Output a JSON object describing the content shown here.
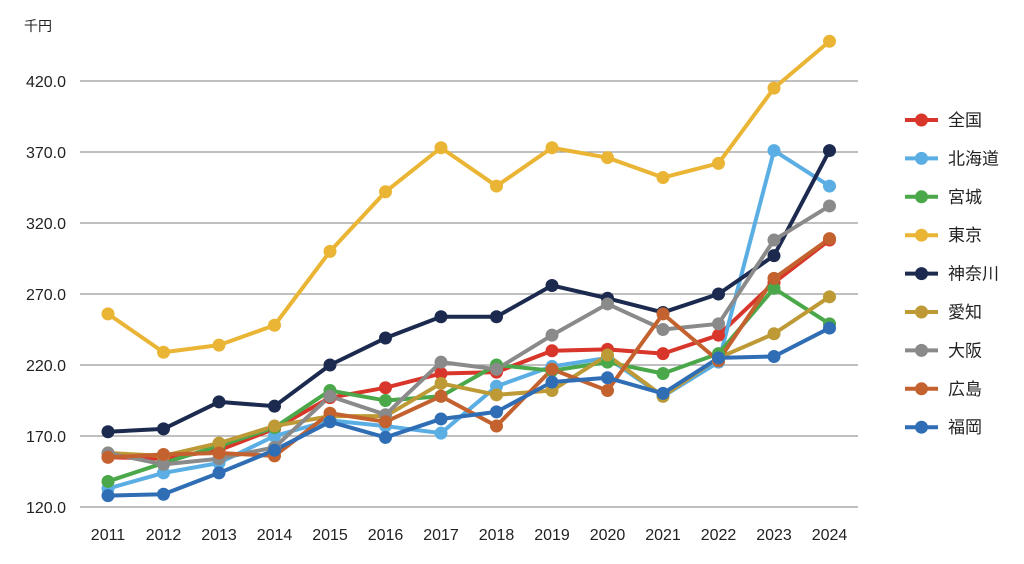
{
  "chart_data": {
    "type": "line",
    "unit_label": "千円",
    "x": [
      "2011",
      "2012",
      "2013",
      "2014",
      "2015",
      "2016",
      "2017",
      "2018",
      "2019",
      "2020",
      "2021",
      "2022",
      "2023",
      "2024"
    ],
    "ylim": [
      120,
      440
    ],
    "yticks": [
      120,
      170,
      220,
      270,
      320,
      370,
      420
    ],
    "ytick_labels": [
      "120.0",
      "170.0",
      "220.0",
      "270.0",
      "320.0",
      "370.0",
      "420.0"
    ],
    "grid": true,
    "legend_position": "right",
    "series": [
      {
        "name": "全国",
        "color": "#d9362b",
        "values": [
          155,
          154,
          160,
          175,
          197,
          204,
          214,
          215,
          230,
          231,
          228,
          241,
          278,
          308
        ]
      },
      {
        "name": "北海道",
        "color": "#5aaee3",
        "values": [
          133,
          144,
          151,
          170,
          181,
          177,
          172,
          205,
          219,
          225,
          198,
          222,
          371,
          346
        ]
      },
      {
        "name": "宮城",
        "color": "#4aa84a",
        "values": [
          138,
          151,
          163,
          176,
          202,
          195,
          198,
          220,
          216,
          222,
          214,
          228,
          274,
          249
        ]
      },
      {
        "name": "東京",
        "color": "#eab534",
        "values": [
          256,
          229,
          234,
          248,
          300,
          342,
          373,
          346,
          373,
          366,
          352,
          362,
          415,
          448
        ]
      },
      {
        "name": "神奈川",
        "color": "#1b2a4e",
        "values": [
          173,
          175,
          194,
          191,
          220,
          239,
          254,
          254,
          276,
          267,
          257,
          270,
          297,
          371
        ]
      },
      {
        "name": "愛知",
        "color": "#bd9a35",
        "values": [
          158,
          156,
          165,
          177,
          184,
          184,
          207,
          199,
          202,
          227,
          198,
          225,
          242,
          268
        ]
      },
      {
        "name": "大阪",
        "color": "#8a8a8a",
        "values": [
          158,
          150,
          154,
          162,
          198,
          185,
          222,
          217,
          241,
          263,
          245,
          249,
          308,
          332
        ]
      },
      {
        "name": "広島",
        "color": "#c4622f",
        "values": [
          155,
          157,
          158,
          156,
          186,
          180,
          198,
          177,
          217,
          202,
          256,
          223,
          281,
          309
        ]
      },
      {
        "name": "福岡",
        "color": "#2f6db5",
        "values": [
          128,
          129,
          144,
          160,
          180,
          169,
          182,
          187,
          208,
          211,
          200,
          225,
          226,
          246
        ]
      }
    ]
  }
}
